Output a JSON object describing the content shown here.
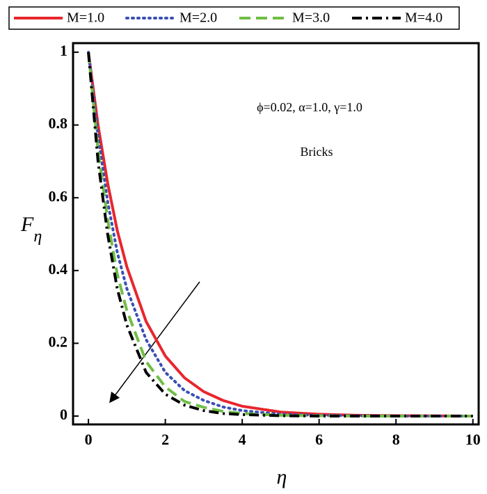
{
  "chart_data": {
    "type": "line",
    "xlabel": "η",
    "ylabel": {
      "main": "F",
      "sub": "η"
    },
    "annotations": [
      "ϕ=0.02, α=1.0, γ=1.0",
      "Bricks"
    ],
    "x": [
      0,
      0.25,
      0.5,
      0.75,
      1,
      1.5,
      2,
      2.5,
      3,
      3.5,
      4,
      5,
      6,
      7,
      8,
      10
    ],
    "series": [
      {
        "name": "M=1.0",
        "color": "#e8262d",
        "dash": "solid",
        "values": [
          1,
          0.8,
          0.64,
          0.51,
          0.41,
          0.26,
          0.165,
          0.105,
          0.067,
          0.043,
          0.027,
          0.011,
          0.005,
          0.002,
          0.001,
          0
        ]
      },
      {
        "name": "M=2.0",
        "color": "#3a4fb5",
        "dash": "dot",
        "values": [
          1,
          0.77,
          0.59,
          0.45,
          0.35,
          0.21,
          0.12,
          0.07,
          0.043,
          0.025,
          0.015,
          0.005,
          0.002,
          0.001,
          0,
          0
        ]
      },
      {
        "name": "M=3.0",
        "color": "#6fbe44",
        "dash": "dash",
        "values": [
          1,
          0.73,
          0.54,
          0.39,
          0.29,
          0.15,
          0.08,
          0.04,
          0.024,
          0.013,
          0.007,
          0.002,
          0.001,
          0,
          0,
          0
        ]
      },
      {
        "name": "M=4.0",
        "color": "#000000",
        "dash": "dashdot",
        "values": [
          1,
          0.7,
          0.5,
          0.35,
          0.25,
          0.12,
          0.06,
          0.03,
          0.015,
          0.007,
          0.004,
          0.001,
          0,
          0,
          0,
          0
        ]
      }
    ],
    "xlim": [
      -0.4,
      10.15
    ],
    "ylim": [
      -0.023,
      1.025
    ],
    "xticks": [
      0,
      2,
      4,
      6,
      8,
      10
    ],
    "yticks": [
      0,
      0.2,
      0.4,
      0.6,
      0.8,
      1
    ],
    "legend": "top"
  }
}
